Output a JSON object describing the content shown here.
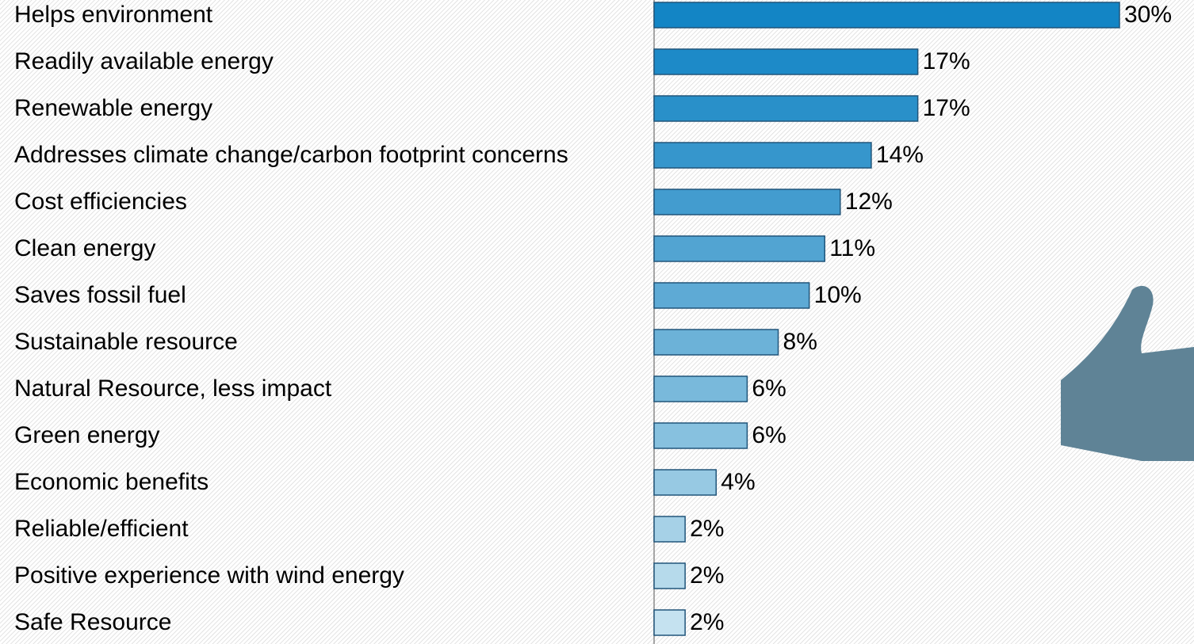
{
  "chart_data": {
    "type": "bar",
    "orientation": "horizontal",
    "categories": [
      "Helps environment",
      "Readily available energy",
      "Renewable energy",
      "Addresses climate change/carbon footprint concerns",
      "Cost efficiencies",
      "Clean energy",
      "Saves fossil fuel",
      "Sustainable resource",
      "Natural Resource, less impact",
      "Green energy",
      "Economic benefits",
      "Reliable/efficient",
      "Positive experience with wind energy",
      "Safe Resource"
    ],
    "values": [
      30,
      17,
      17,
      14,
      12,
      11,
      10,
      8,
      6,
      6,
      4,
      2,
      2,
      2
    ],
    "value_labels": [
      "30%",
      "17%",
      "17%",
      "14%",
      "12%",
      "11%",
      "10%",
      "8%",
      "6%",
      "6%",
      "4%",
      "2%",
      "2%",
      "2%"
    ],
    "colors": [
      "#1385c5",
      "#1d8ac8",
      "#2990c9",
      "#3696cc",
      "#439ccf",
      "#52a4d2",
      "#5eaad5",
      "#6cb2d8",
      "#79b9db",
      "#87c1df",
      "#97c9e3",
      "#a6d1e7",
      "#b6daeb",
      "#c5e2f0"
    ]
  }
}
